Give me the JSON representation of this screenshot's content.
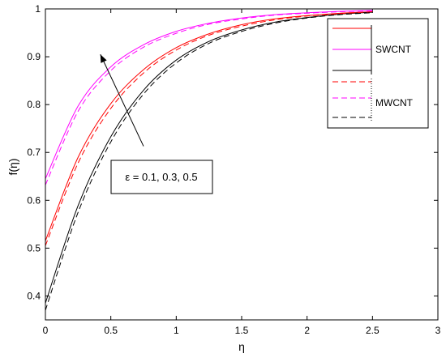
{
  "chart_data": {
    "type": "line",
    "xlabel": "η",
    "ylabel": "f(η)",
    "xlim": [
      0,
      3
    ],
    "ylim": [
      0.35,
      1.0
    ],
    "xticks": [
      "0",
      "0.5",
      "1",
      "1.5",
      "2",
      "2.5",
      "3"
    ],
    "yticks": [
      "0.4",
      "0.5",
      "0.6",
      "0.7",
      "0.8",
      "0.9",
      "1"
    ],
    "grid": false,
    "annotation": "ε = 0.1, 0.3, 0.5",
    "arrow": {
      "from": [
        0.75,
        0.713
      ],
      "to": [
        0.42,
        0.905
      ]
    },
    "legend": {
      "placement": "top-right",
      "groups": [
        {
          "label": "SWCNT",
          "style": "solid",
          "colors": [
            "#ff0000",
            "#ff00ff",
            "#000000"
          ]
        },
        {
          "label": "MWCNT",
          "style": "dashed",
          "colors": [
            "#ff0000",
            "#ff00ff",
            "#000000"
          ]
        }
      ]
    },
    "series": [
      {
        "group": "SWCNT",
        "color": "#ff0000",
        "style": "solid",
        "x": [
          0,
          0.25,
          0.5,
          0.75,
          1,
          1.25,
          1.5,
          1.75,
          2,
          2.25,
          2.5
        ],
        "y": [
          0.515,
          0.69,
          0.802,
          0.873,
          0.919,
          0.948,
          0.967,
          0.979,
          0.986,
          0.991,
          0.994
        ]
      },
      {
        "group": "SWCNT",
        "color": "#ff00ff",
        "style": "solid",
        "x": [
          0,
          0.25,
          0.5,
          0.75,
          1,
          1.25,
          1.5,
          1.75,
          2,
          2.25,
          2.5
        ],
        "y": [
          0.645,
          0.797,
          0.879,
          0.925,
          0.953,
          0.97,
          0.981,
          0.988,
          0.992,
          0.995,
          0.997
        ]
      },
      {
        "group": "SWCNT",
        "color": "#000000",
        "style": "solid",
        "x": [
          0,
          0.25,
          0.5,
          0.75,
          1,
          1.25,
          1.5,
          1.75,
          2,
          2.25,
          2.5
        ],
        "y": [
          0.385,
          0.589,
          0.733,
          0.83,
          0.893,
          0.932,
          0.956,
          0.972,
          0.982,
          0.989,
          0.993
        ]
      },
      {
        "group": "MWCNT",
        "color": "#ff0000",
        "style": "dashed",
        "x": [
          0,
          0.25,
          0.5,
          0.75,
          1,
          1.25,
          1.5,
          1.75,
          2,
          2.25,
          2.5
        ],
        "y": [
          0.505,
          0.678,
          0.792,
          0.866,
          0.914,
          0.945,
          0.964,
          0.977,
          0.985,
          0.99,
          0.994
        ]
      },
      {
        "group": "MWCNT",
        "color": "#ff00ff",
        "style": "dashed",
        "x": [
          0,
          0.25,
          0.5,
          0.75,
          1,
          1.25,
          1.5,
          1.75,
          2,
          2.25,
          2.5
        ],
        "y": [
          0.632,
          0.786,
          0.871,
          0.92,
          0.949,
          0.968,
          0.979,
          0.987,
          0.991,
          0.994,
          0.996
        ]
      },
      {
        "group": "MWCNT",
        "color": "#000000",
        "style": "dashed",
        "x": [
          0,
          0.25,
          0.5,
          0.75,
          1,
          1.25,
          1.5,
          1.75,
          2,
          2.25,
          2.5
        ],
        "y": [
          0.37,
          0.575,
          0.722,
          0.822,
          0.887,
          0.928,
          0.953,
          0.97,
          0.981,
          0.988,
          0.992
        ]
      }
    ]
  }
}
